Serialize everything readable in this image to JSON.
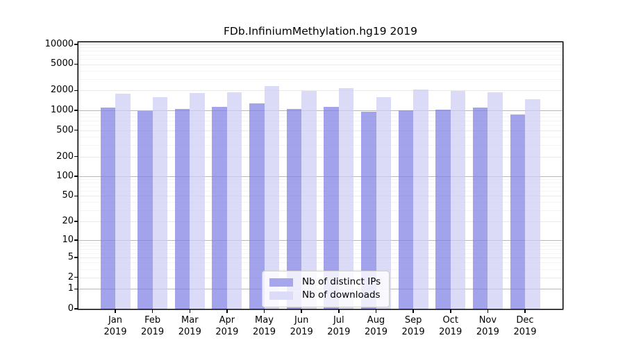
{
  "title": "FDb.InfiniumMethylation.hg19 2019",
  "chart_data": {
    "type": "bar",
    "title": "FDb.InfiniumMethylation.hg19 2019",
    "categories": [
      "Jan",
      "Feb",
      "Mar",
      "Apr",
      "May",
      "Jun",
      "Jul",
      "Aug",
      "Sep",
      "Oct",
      "Nov",
      "Dec"
    ],
    "category_year": "2019",
    "series": [
      {
        "name": "Nb of distinct IPs",
        "color": "#a6a6ed",
        "values": [
          1100,
          990,
          1050,
          1120,
          1270,
          1050,
          1120,
          955,
          1010,
          1030,
          1100,
          865
        ]
      },
      {
        "name": "Nb of downloads",
        "color": "#dcdcf8",
        "values": [
          1790,
          1590,
          1830,
          1890,
          2320,
          1970,
          2170,
          1590,
          2050,
          1980,
          1860,
          1490
        ]
      }
    ],
    "yticks": [
      10000,
      5000,
      2000,
      1000,
      500,
      200,
      100,
      50,
      20,
      10,
      5,
      2,
      1,
      0
    ],
    "scale": "log10(x+1)",
    "ylim": [
      0,
      10700
    ],
    "grid": "horizontal",
    "legend_position": "inside-bottom-center",
    "grid_colors": {
      "decade": "#b7b7b9",
      "major": "#e9e9e9",
      "minor": "#f3f3f3"
    }
  }
}
